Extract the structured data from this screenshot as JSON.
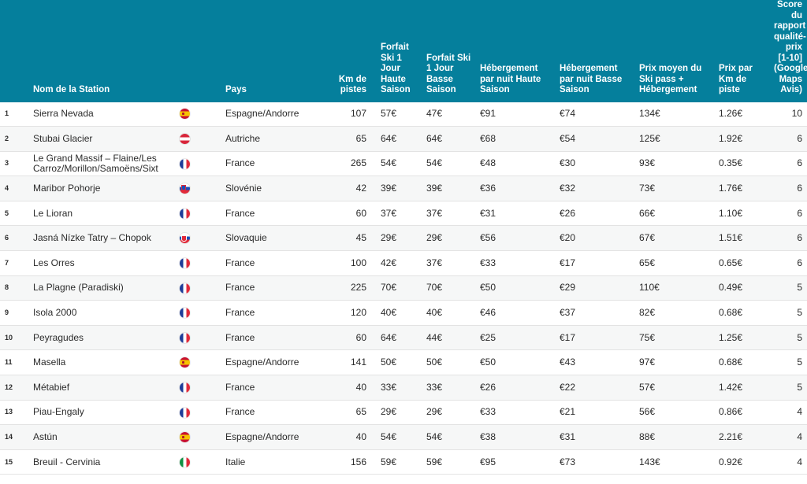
{
  "headers": {
    "station": "Nom de la Station",
    "pays": "Pays",
    "km": "Km de pistes",
    "haute": "Forfait Ski 1 Jour Haute Saison",
    "basse": "Forfait Ski 1 Jour Basse Saison",
    "heb_haute": "Hébergement par nuit Haute Saison",
    "heb_basse": "Hébergement par nuit Basse Saison",
    "prix_moyen": "Prix moyen du Ski pass + Hébergement",
    "prix_km": "Prix par Km de piste",
    "score": "Score du rapport qualité-prix [1-10] (Google Maps Avis)"
  },
  "colors": {
    "header_bg": "#057f9c",
    "header_text": "#ffffff"
  },
  "rows": [
    {
      "rank": "1",
      "station": "Sierra Nevada",
      "flag": "es",
      "pays": "Espagne/Andorre",
      "km": "107",
      "haute": "57€",
      "basse": "47€",
      "heb_haute": "€91",
      "heb_basse": "€74",
      "prix_moyen": "134€",
      "prix_km": "1.26€",
      "score": "10"
    },
    {
      "rank": "2",
      "station": "Stubai Glacier",
      "flag": "at",
      "pays": "Autriche",
      "km": "65",
      "haute": "64€",
      "basse": "64€",
      "heb_haute": "€68",
      "heb_basse": "€54",
      "prix_moyen": "125€",
      "prix_km": "1.92€",
      "score": "6"
    },
    {
      "rank": "3",
      "station": "Le Grand Massif – Flaine/Les Carroz/Morillon/Samoëns/Sixt",
      "flag": "fr",
      "pays": "France",
      "km": "265",
      "haute": "54€",
      "basse": "54€",
      "heb_haute": "€48",
      "heb_basse": "€30",
      "prix_moyen": "93€",
      "prix_km": "0.35€",
      "score": "6"
    },
    {
      "rank": "4",
      "station": "Maribor Pohorje",
      "flag": "si",
      "pays": "Slovénie",
      "km": "42",
      "haute": "39€",
      "basse": "39€",
      "heb_haute": "€36",
      "heb_basse": "€32",
      "prix_moyen": "73€",
      "prix_km": "1.76€",
      "score": "6"
    },
    {
      "rank": "5",
      "station": "Le Lioran",
      "flag": "fr",
      "pays": "France",
      "km": "60",
      "haute": "37€",
      "basse": "37€",
      "heb_haute": "€31",
      "heb_basse": "€26",
      "prix_moyen": "66€",
      "prix_km": "1.10€",
      "score": "6"
    },
    {
      "rank": "6",
      "station": "Jasná Nízke Tatry – Chopok",
      "flag": "sk",
      "pays": "Slovaquie",
      "km": "45",
      "haute": "29€",
      "basse": "29€",
      "heb_haute": "€56",
      "heb_basse": "€20",
      "prix_moyen": "67€",
      "prix_km": "1.51€",
      "score": "6"
    },
    {
      "rank": "7",
      "station": "Les Orres",
      "flag": "fr",
      "pays": "France",
      "km": "100",
      "haute": "42€",
      "basse": "37€",
      "heb_haute": "€33",
      "heb_basse": "€17",
      "prix_moyen": "65€",
      "prix_km": "0.65€",
      "score": "6"
    },
    {
      "rank": "8",
      "station": "La Plagne (Paradiski)",
      "flag": "fr",
      "pays": "France",
      "km": "225",
      "haute": "70€",
      "basse": "70€",
      "heb_haute": "€50",
      "heb_basse": "€29",
      "prix_moyen": "110€",
      "prix_km": "0.49€",
      "score": "5"
    },
    {
      "rank": "9",
      "station": "Isola 2000",
      "flag": "fr",
      "pays": "France",
      "km": "120",
      "haute": "40€",
      "basse": "40€",
      "heb_haute": "€46",
      "heb_basse": "€37",
      "prix_moyen": "82€",
      "prix_km": "0.68€",
      "score": "5"
    },
    {
      "rank": "10",
      "station": "Peyragudes",
      "flag": "fr",
      "pays": "France",
      "km": "60",
      "haute": "64€",
      "basse": "44€",
      "heb_haute": "€25",
      "heb_basse": "€17",
      "prix_moyen": "75€",
      "prix_km": "1.25€",
      "score": "5"
    },
    {
      "rank": "11",
      "station": "Masella",
      "flag": "es",
      "pays": "Espagne/Andorre",
      "km": "141",
      "haute": "50€",
      "basse": "50€",
      "heb_haute": "€50",
      "heb_basse": "€43",
      "prix_moyen": "97€",
      "prix_km": "0.68€",
      "score": "5"
    },
    {
      "rank": "12",
      "station": "Métabief",
      "flag": "fr",
      "pays": "France",
      "km": "40",
      "haute": "33€",
      "basse": "33€",
      "heb_haute": "€26",
      "heb_basse": "€22",
      "prix_moyen": "57€",
      "prix_km": "1.42€",
      "score": "5"
    },
    {
      "rank": "13",
      "station": "Piau-Engaly",
      "flag": "fr",
      "pays": "France",
      "km": "65",
      "haute": "29€",
      "basse": "29€",
      "heb_haute": "€33",
      "heb_basse": "€21",
      "prix_moyen": "56€",
      "prix_km": "0.86€",
      "score": "4"
    },
    {
      "rank": "14",
      "station": "Astún",
      "flag": "es",
      "pays": "Espagne/Andorre",
      "km": "40",
      "haute": "54€",
      "basse": "54€",
      "heb_haute": "€38",
      "heb_basse": "€31",
      "prix_moyen": "88€",
      "prix_km": "2.21€",
      "score": "4"
    },
    {
      "rank": "15",
      "station": "Breuil - Cervinia",
      "flag": "it",
      "pays": "Italie",
      "km": "156",
      "haute": "59€",
      "basse": "59€",
      "heb_haute": "€95",
      "heb_basse": "€73",
      "prix_moyen": "143€",
      "prix_km": "0.92€",
      "score": "4"
    }
  ]
}
